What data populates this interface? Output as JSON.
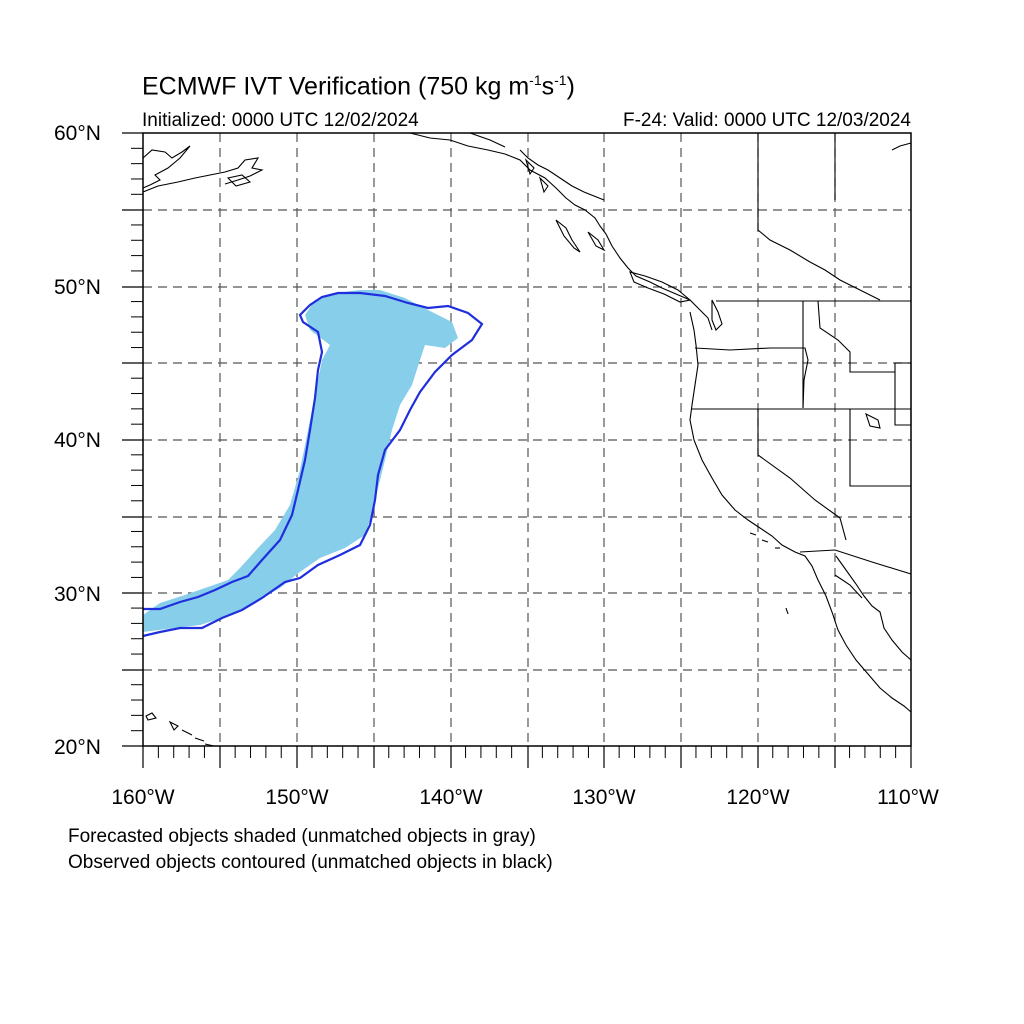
{
  "title": {
    "main": "ECMWF IVT Verification (750 kg m",
    "exp1": "-1",
    "mid": "s",
    "exp2": "-1",
    "end": ")"
  },
  "initialized": "Initialized: 0000 UTC 12/02/2024",
  "valid": "F-24: Valid: 0000 UTC 12/03/2024",
  "lat_labels": [
    "60°N",
    "50°N",
    "40°N",
    "30°N",
    "20°N"
  ],
  "lon_labels": [
    "160°W",
    "150°W",
    "140°W",
    "130°W",
    "120°W",
    "110°W"
  ],
  "notes": [
    "Forecasted objects shaded (unmatched objects in gray)",
    "Observed objects contoured (unmatched objects in black)"
  ],
  "map_extent": {
    "lon_min": -160,
    "lon_max": -110,
    "lat_min": 20,
    "lat_max": 60
  },
  "colors": {
    "forecast_fill": "#87ceeb",
    "observed_contour": "#1f2fdd",
    "coastline": "#000000",
    "gridline": "#555555"
  }
}
